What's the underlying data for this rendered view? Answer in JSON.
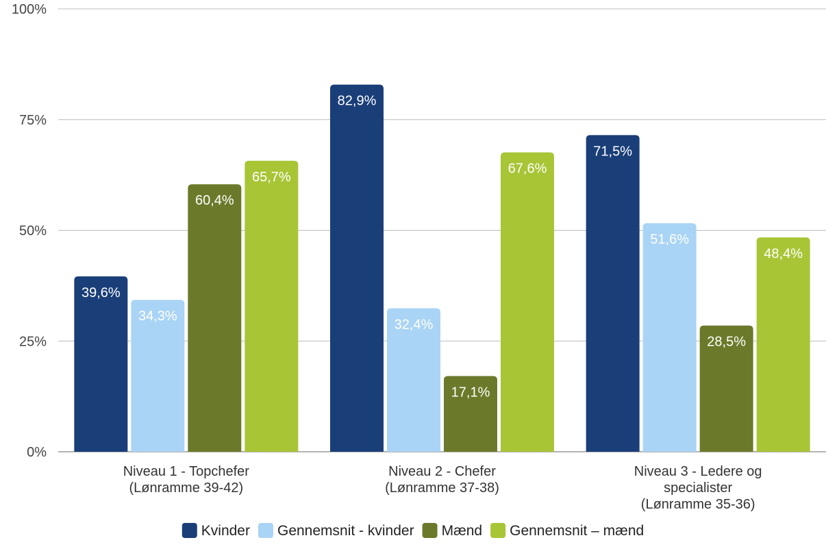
{
  "chart_data": {
    "type": "bar",
    "categories": [
      [
        "Niveau 1 - Topchefer",
        "(Lønramme 39-42)"
      ],
      [
        "Niveau 2 - Chefer",
        "(Lønramme 37-38)"
      ],
      [
        "Niveau 3 - Ledere og",
        "specialister",
        "(Lønramme 35-36)"
      ]
    ],
    "series": [
      {
        "name": "Kvinder",
        "color": "#1a3e78",
        "label_color": "#ffffff",
        "values": [
          39.6,
          82.9,
          71.5
        ],
        "labels": [
          "39,6%",
          "82,9%",
          "71,5%"
        ]
      },
      {
        "name": "Gennemsnit - kvinder",
        "color": "#a9d4f5",
        "label_color": "#ffffff",
        "values": [
          34.3,
          32.4,
          51.6
        ],
        "labels": [
          "34,3%",
          "32,4%",
          "51,6%"
        ]
      },
      {
        "name": "Mænd",
        "color": "#6b7a2a",
        "label_color": "#ffffff",
        "values": [
          60.4,
          17.1,
          28.5
        ],
        "labels": [
          "60,4%",
          "17,1%",
          "28,5%"
        ]
      },
      {
        "name": "Gennemsnit – mænd",
        "color": "#a8c536",
        "label_color": "#ffffff",
        "values": [
          65.7,
          67.6,
          48.4
        ],
        "labels": [
          "65,7%",
          "67,6%",
          "48,4%"
        ]
      }
    ],
    "ylim": [
      0,
      100
    ],
    "yticks": [
      0,
      25,
      50,
      75,
      100
    ],
    "ytick_labels": [
      "0%",
      "25%",
      "50%",
      "75%",
      "100%"
    ],
    "grid": true,
    "legend": "bottom-center"
  }
}
